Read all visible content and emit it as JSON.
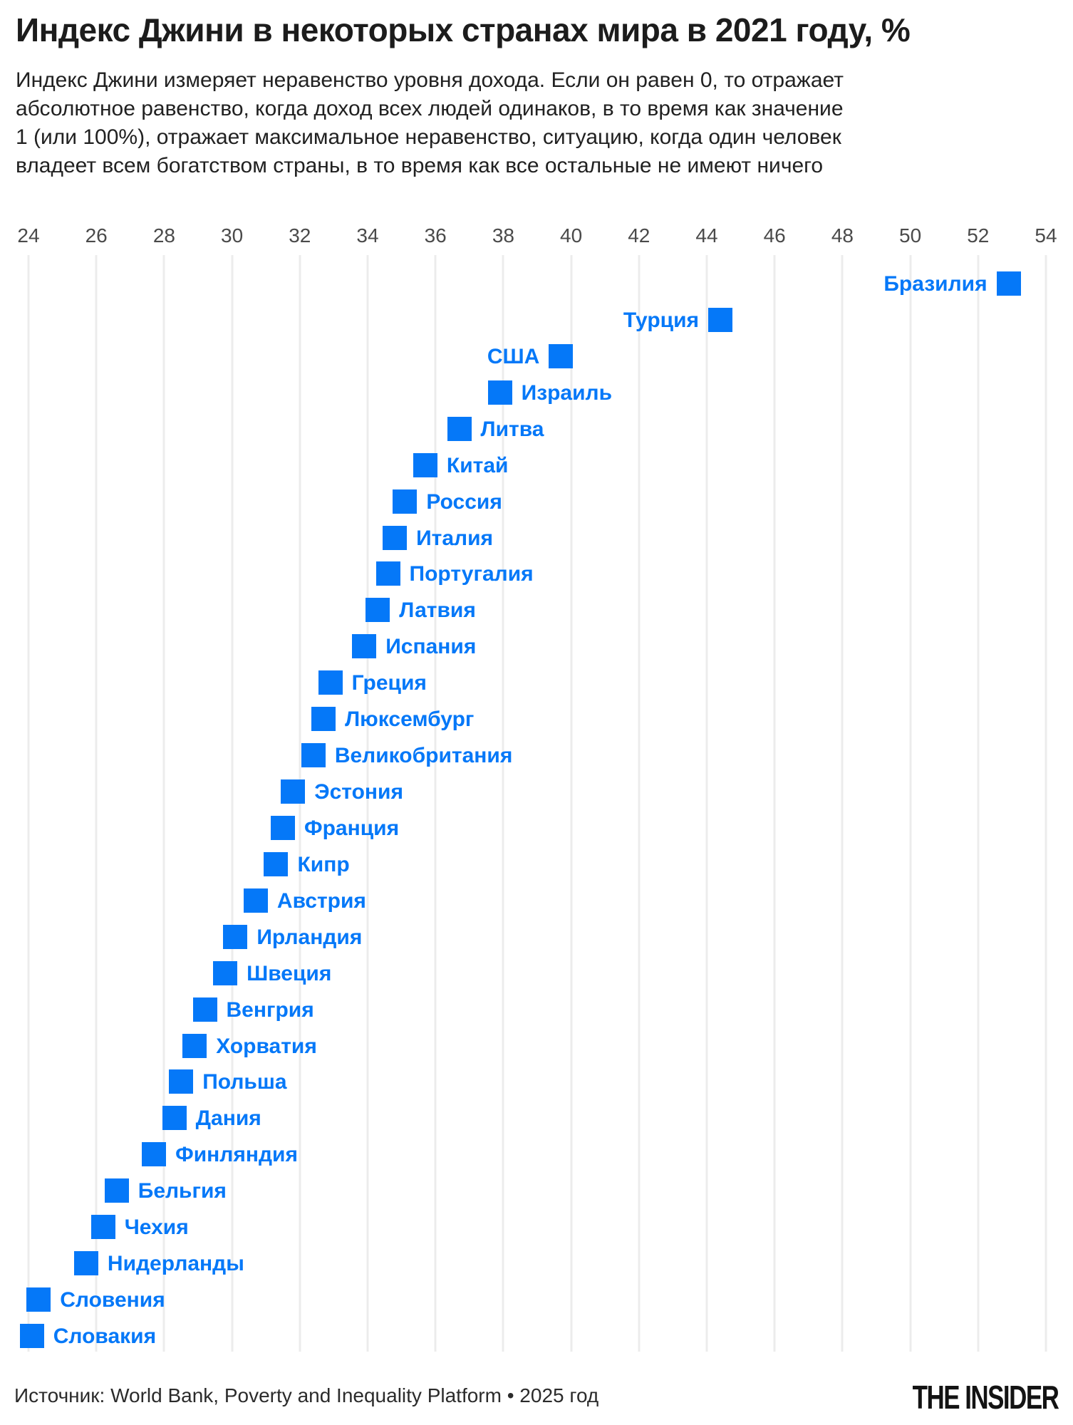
{
  "header": {
    "title": "Индекс Джини в некоторых странах мира в 2021 году, %",
    "subtitle": "Индекс Джини измеряет неравенство уровня дохода. Если он равен 0, то отражает абсолютное равенство, когда доход всех людей одинаков, в то время как значение 1 (или 100%), отражает максимальное неравенство, ситуацию, когда один человек владеет всем богатством страны, в то время как все остальные не имеют ничего"
  },
  "footer": {
    "source": "Источник: World Bank, Poverty and Inequality Platform • 2025 год",
    "logo": "THE INSIDER"
  },
  "colors": {
    "accent_blue": "#0578F8",
    "grid": "#ececec",
    "axis_label": "#4a4a4a",
    "title": "#1c1c1c",
    "subtitle": "#212121",
    "source": "#2b2b2b",
    "logo": "#131313"
  },
  "chart_data": {
    "type": "scatter",
    "variant": "horizontal-dot-plot",
    "title": "Индекс Джини в некоторых странах мира в 2021 году, %",
    "xlabel": "",
    "ylabel": "",
    "unit": "%",
    "xlim": [
      24,
      54
    ],
    "x_tick_step": 2,
    "x_ticks": [
      24,
      26,
      28,
      30,
      32,
      34,
      36,
      38,
      40,
      42,
      44,
      46,
      48,
      50,
      52,
      54
    ],
    "grid": true,
    "legend": false,
    "series": [
      {
        "country": "Бразилия",
        "value": 52.9,
        "label_side": "left"
      },
      {
        "country": "Турция",
        "value": 44.4,
        "label_side": "left"
      },
      {
        "country": "США",
        "value": 39.7,
        "label_side": "left"
      },
      {
        "country": "Израиль",
        "value": 37.9,
        "label_side": "right"
      },
      {
        "country": "Литва",
        "value": 36.7,
        "label_side": "right"
      },
      {
        "country": "Китай",
        "value": 35.7,
        "label_side": "right"
      },
      {
        "country": "Россия",
        "value": 35.1,
        "label_side": "right"
      },
      {
        "country": "Италия",
        "value": 34.8,
        "label_side": "right"
      },
      {
        "country": "Португалия",
        "value": 34.6,
        "label_side": "right"
      },
      {
        "country": "Латвия",
        "value": 34.3,
        "label_side": "right"
      },
      {
        "country": "Испания",
        "value": 33.9,
        "label_side": "right"
      },
      {
        "country": "Греция",
        "value": 32.9,
        "label_side": "right"
      },
      {
        "country": "Люксембург",
        "value": 32.7,
        "label_side": "right"
      },
      {
        "country": "Великобритания",
        "value": 32.4,
        "label_side": "right"
      },
      {
        "country": "Эстония",
        "value": 31.8,
        "label_side": "right"
      },
      {
        "country": "Франция",
        "value": 31.5,
        "label_side": "right"
      },
      {
        "country": "Кипр",
        "value": 31.3,
        "label_side": "right"
      },
      {
        "country": "Австрия",
        "value": 30.7,
        "label_side": "right"
      },
      {
        "country": "Ирландия",
        "value": 30.1,
        "label_side": "right"
      },
      {
        "country": "Швеция",
        "value": 29.8,
        "label_side": "right"
      },
      {
        "country": "Венгрия",
        "value": 29.2,
        "label_side": "right"
      },
      {
        "country": "Хорватия",
        "value": 28.9,
        "label_side": "right"
      },
      {
        "country": "Польша",
        "value": 28.5,
        "label_side": "right"
      },
      {
        "country": "Дания",
        "value": 28.3,
        "label_side": "right"
      },
      {
        "country": "Финляндия",
        "value": 27.7,
        "label_side": "right"
      },
      {
        "country": "Бельгия",
        "value": 26.6,
        "label_side": "right"
      },
      {
        "country": "Чехия",
        "value": 26.2,
        "label_side": "right"
      },
      {
        "country": "Нидерланды",
        "value": 25.7,
        "label_side": "right"
      },
      {
        "country": "Словения",
        "value": 24.3,
        "label_side": "right"
      },
      {
        "country": "Словакия",
        "value": 24.1,
        "label_side": "right"
      }
    ]
  }
}
